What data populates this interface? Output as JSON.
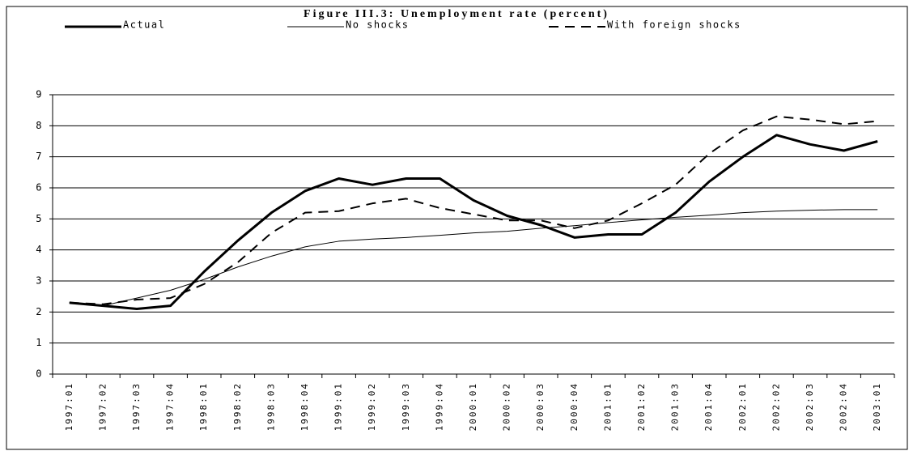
{
  "chart_data": {
    "type": "line",
    "title": "Figure III.3: Unemployment rate (percent)",
    "categories": [
      "1997:01",
      "1997:02",
      "1997:03",
      "1997:04",
      "1998:01",
      "1998:02",
      "1998:03",
      "1998:04",
      "1999:01",
      "1999:02",
      "1999:03",
      "1999:04",
      "2000:01",
      "2000:02",
      "2000:03",
      "2000:04",
      "2001:01",
      "2001:02",
      "2001:03",
      "2001:04",
      "2002:01",
      "2002:02",
      "2002:03",
      "2002:04",
      "2003:01"
    ],
    "series": [
      {
        "name": "Actual",
        "color": "#000000",
        "line_width": 3,
        "dash": "none",
        "values": [
          2.3,
          2.2,
          2.1,
          2.2,
          3.3,
          4.3,
          5.2,
          5.9,
          6.3,
          6.1,
          6.3,
          6.3,
          5.6,
          5.1,
          4.8,
          4.4,
          4.5,
          4.5,
          5.2,
          6.2,
          7.0,
          7.7,
          7.4,
          7.2,
          7.5
        ]
      },
      {
        "name": "No shocks",
        "color": "#000000",
        "line_width": 1,
        "dash": "none",
        "values": [
          2.3,
          2.2,
          2.45,
          2.7,
          3.05,
          3.45,
          3.8,
          4.1,
          4.28,
          4.35,
          4.4,
          4.47,
          4.55,
          4.6,
          4.7,
          4.78,
          4.88,
          4.97,
          5.05,
          5.12,
          5.2,
          5.25,
          5.28,
          5.3,
          5.3
        ]
      },
      {
        "name": "With foreign shocks",
        "color": "#000000",
        "line_width": 2,
        "dash": "12,8",
        "values": [
          2.3,
          2.25,
          2.4,
          2.45,
          2.9,
          3.6,
          4.55,
          5.2,
          5.25,
          5.5,
          5.65,
          5.35,
          5.15,
          4.95,
          4.95,
          4.7,
          4.95,
          5.5,
          6.1,
          7.1,
          7.85,
          8.3,
          8.2,
          8.05,
          8.15
        ]
      }
    ],
    "ylim": [
      0,
      9
    ],
    "yticks": [
      0,
      1,
      2,
      3,
      4,
      5,
      6,
      7,
      8,
      9
    ],
    "grid": true
  }
}
